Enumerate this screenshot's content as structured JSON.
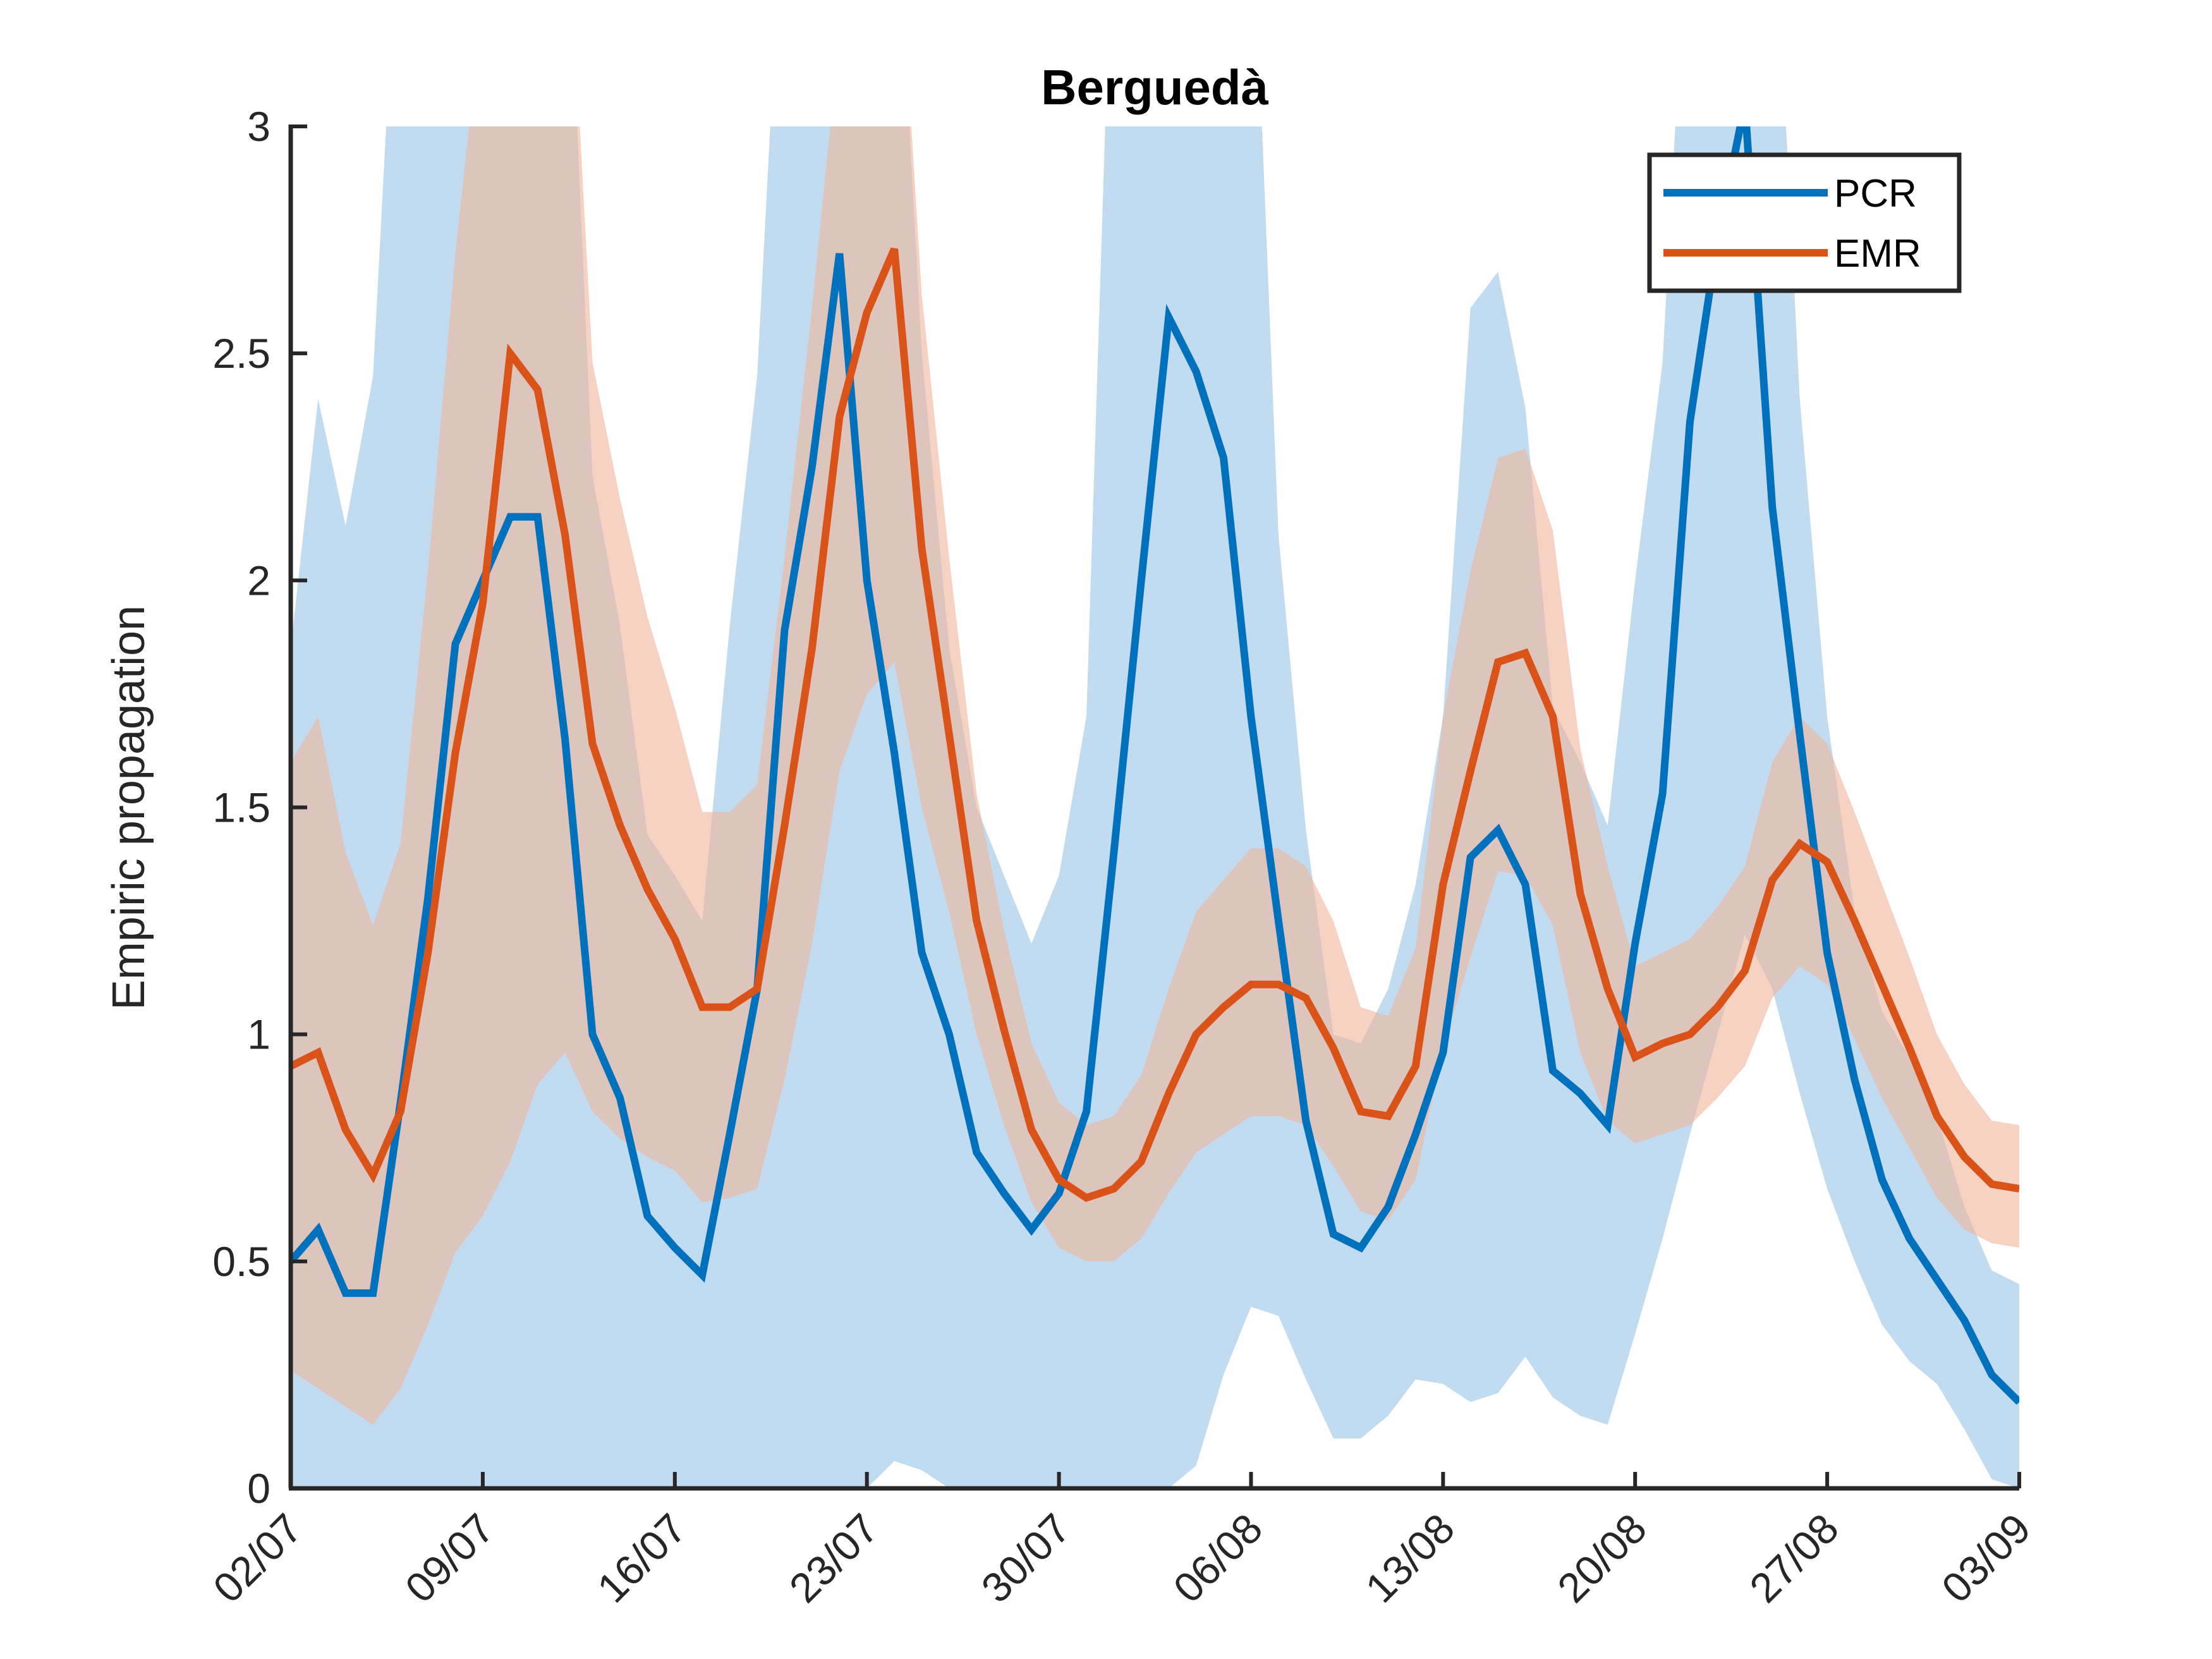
{
  "chart_data": {
    "type": "line",
    "title": "Berguedà",
    "xlabel": "",
    "ylabel": "Empiric propagation",
    "x_tick_labels": [
      "02/07",
      "09/07",
      "16/07",
      "23/07",
      "30/07",
      "06/08",
      "13/08",
      "20/08",
      "27/08",
      "03/09"
    ],
    "x_range_days": [
      0,
      63
    ],
    "ylim": [
      0,
      3
    ],
    "y_ticks": [
      0,
      0.5,
      1,
      1.5,
      2,
      2.5,
      3
    ],
    "y_tick_labels": [
      "0",
      "0.5",
      "1",
      "1.5",
      "2",
      "2.5",
      "3"
    ],
    "grid": false,
    "legend_position": "top-right",
    "colors": {
      "pcr": "#0072BD",
      "emr": "#D95319",
      "pcr_band": "#A6CDE9",
      "emr_band": "#F0B49A",
      "axis": "#262626"
    },
    "series": [
      {
        "name": "PCR",
        "x": [
          0,
          1,
          2,
          3,
          4,
          5,
          6,
          7,
          8,
          9,
          10,
          11,
          12,
          13,
          14,
          15,
          16,
          17,
          18,
          19,
          20,
          21,
          22,
          23,
          24,
          25,
          26,
          27,
          28,
          29,
          30,
          31,
          32,
          33,
          34,
          35,
          36,
          37,
          38,
          39,
          40,
          41,
          42,
          43,
          44,
          45,
          46,
          47,
          48,
          49,
          50,
          51,
          52,
          53,
          54,
          55,
          56,
          57,
          58,
          59,
          60,
          61,
          62,
          63
        ],
        "values": [
          0.5,
          0.57,
          0.43,
          0.43,
          0.85,
          1.3,
          1.86,
          2.0,
          2.14,
          2.14,
          1.65,
          1.0,
          0.86,
          0.6,
          0.53,
          0.47,
          0.78,
          1.1,
          1.89,
          2.25,
          2.72,
          2.0,
          1.62,
          1.18,
          1.0,
          0.74,
          0.65,
          0.57,
          0.65,
          0.83,
          1.4,
          2.0,
          2.58,
          2.46,
          2.27,
          1.7,
          1.25,
          0.81,
          0.56,
          0.53,
          0.62,
          0.78,
          0.96,
          1.39,
          1.45,
          1.33,
          0.92,
          0.87,
          0.8,
          1.2,
          1.53,
          2.35,
          2.75,
          3.05,
          2.16,
          1.66,
          1.18,
          0.9,
          0.68,
          0.55,
          0.46,
          0.37,
          0.25,
          0.19
        ],
        "ci_lower": [
          0.0,
          0.0,
          0.0,
          0.0,
          0.0,
          0.0,
          0.0,
          0.0,
          0.0,
          0.0,
          0.0,
          0.0,
          0.0,
          0.0,
          0.0,
          0.0,
          0.0,
          0.0,
          0.0,
          0.0,
          0.0,
          0.0,
          0.06,
          0.04,
          0.0,
          0.0,
          0.0,
          0.0,
          0.0,
          0.0,
          0.0,
          0.0,
          0.0,
          0.05,
          0.25,
          0.4,
          0.38,
          0.24,
          0.11,
          0.11,
          0.16,
          0.24,
          0.23,
          0.19,
          0.21,
          0.29,
          0.2,
          0.16,
          0.14,
          0.34,
          0.55,
          0.78,
          1.0,
          1.22,
          1.1,
          0.87,
          0.66,
          0.5,
          0.36,
          0.28,
          0.23,
          0.13,
          0.02,
          0.0
        ],
        "ci_upper": [
          1.85,
          2.4,
          2.12,
          2.45,
          3.6,
          3.6,
          3.6,
          3.6,
          3.6,
          3.6,
          3.6,
          2.23,
          1.9,
          1.44,
          1.35,
          1.25,
          1.9,
          2.45,
          3.6,
          3.6,
          3.6,
          3.6,
          3.6,
          2.5,
          1.85,
          1.5,
          1.35,
          1.2,
          1.35,
          1.7,
          3.6,
          3.6,
          3.6,
          3.6,
          3.6,
          3.6,
          2.1,
          1.45,
          1.0,
          0.98,
          1.1,
          1.33,
          1.7,
          2.6,
          2.68,
          2.38,
          1.72,
          1.6,
          1.46,
          2.0,
          2.48,
          3.6,
          3.6,
          3.6,
          3.6,
          2.4,
          1.7,
          1.27,
          1.05,
          0.95,
          0.82,
          0.62,
          0.48,
          0.45
        ]
      },
      {
        "name": "EMR",
        "x": [
          0,
          1,
          2,
          3,
          4,
          5,
          6,
          7,
          8,
          9,
          10,
          11,
          12,
          13,
          14,
          15,
          16,
          17,
          18,
          19,
          20,
          21,
          22,
          23,
          24,
          25,
          26,
          27,
          28,
          29,
          30,
          31,
          32,
          33,
          34,
          35,
          36,
          37,
          38,
          39,
          40,
          41,
          42,
          43,
          44,
          45,
          46,
          47,
          48,
          49,
          50,
          51,
          52,
          53,
          54,
          55,
          56,
          57,
          58,
          59,
          60,
          61,
          62,
          63
        ],
        "values": [
          0.93,
          0.96,
          0.79,
          0.69,
          0.83,
          1.18,
          1.62,
          1.95,
          2.5,
          2.42,
          2.1,
          1.64,
          1.46,
          1.32,
          1.21,
          1.06,
          1.06,
          1.1,
          1.46,
          1.85,
          2.36,
          2.59,
          2.73,
          2.07,
          1.66,
          1.25,
          1.01,
          0.79,
          0.68,
          0.64,
          0.66,
          0.72,
          0.87,
          1.0,
          1.06,
          1.11,
          1.11,
          1.08,
          0.97,
          0.83,
          0.82,
          0.93,
          1.33,
          1.58,
          1.82,
          1.84,
          1.7,
          1.31,
          1.1,
          0.95,
          0.98,
          1.0,
          1.06,
          1.14,
          1.34,
          1.42,
          1.38,
          1.25,
          1.11,
          0.97,
          0.82,
          0.73,
          0.67,
          0.66
        ],
        "ci_lower": [
          0.26,
          0.22,
          0.18,
          0.14,
          0.22,
          0.36,
          0.52,
          0.6,
          0.72,
          0.89,
          0.96,
          0.83,
          0.77,
          0.73,
          0.7,
          0.63,
          0.64,
          0.66,
          0.9,
          1.2,
          1.58,
          1.75,
          1.82,
          1.5,
          1.27,
          1.0,
          0.8,
          0.63,
          0.53,
          0.5,
          0.5,
          0.55,
          0.65,
          0.74,
          0.78,
          0.82,
          0.82,
          0.8,
          0.71,
          0.61,
          0.59,
          0.68,
          0.97,
          1.17,
          1.36,
          1.35,
          1.24,
          0.96,
          0.81,
          0.76,
          0.78,
          0.8,
          0.86,
          0.93,
          1.08,
          1.15,
          1.11,
          0.99,
          0.86,
          0.75,
          0.64,
          0.57,
          0.54,
          0.53
        ],
        "ci_upper": [
          1.6,
          1.7,
          1.4,
          1.24,
          1.42,
          2.02,
          2.72,
          3.28,
          3.6,
          3.6,
          3.6,
          2.48,
          2.18,
          1.92,
          1.72,
          1.49,
          1.49,
          1.55,
          2.05,
          2.6,
          3.2,
          3.5,
          3.6,
          2.63,
          2.05,
          1.53,
          1.23,
          0.98,
          0.85,
          0.8,
          0.82,
          0.91,
          1.1,
          1.27,
          1.34,
          1.41,
          1.41,
          1.37,
          1.25,
          1.06,
          1.04,
          1.19,
          1.7,
          2.02,
          2.27,
          2.29,
          2.11,
          1.63,
          1.37,
          1.15,
          1.18,
          1.21,
          1.28,
          1.37,
          1.6,
          1.7,
          1.64,
          1.49,
          1.33,
          1.17,
          1.0,
          0.89,
          0.81,
          0.8
        ]
      }
    ]
  }
}
